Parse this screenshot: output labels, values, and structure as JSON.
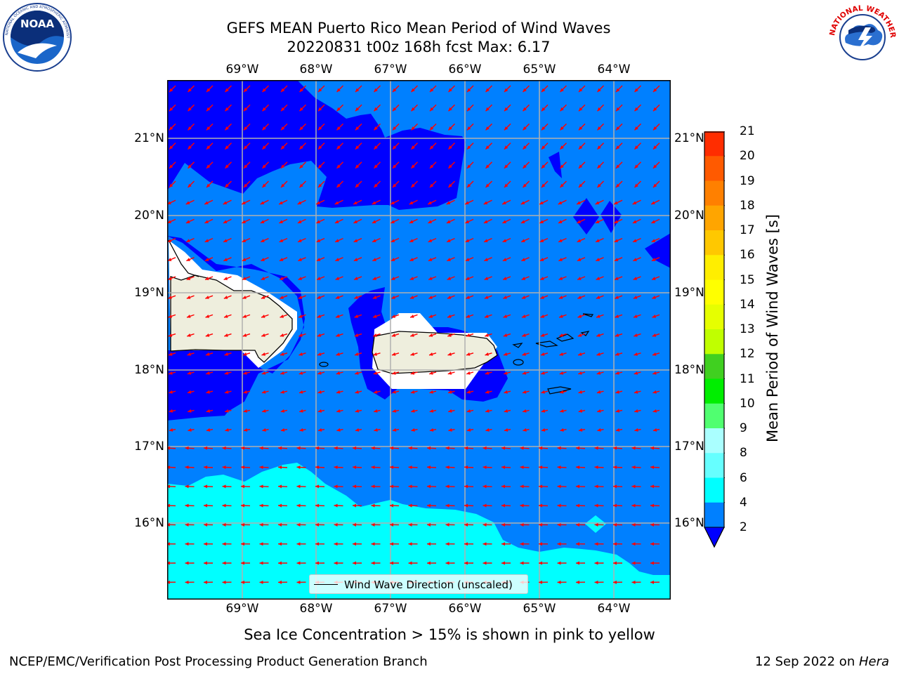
{
  "title": {
    "line1": "GEFS MEAN Puerto Rico Mean Period of Wind Waves",
    "line2": "20220831 t00z 168h fcst   Max: 6.17"
  },
  "logos": {
    "noaa": {
      "icon": "noaa-logo",
      "text": "NOAA",
      "ring_text": "NATIONAL OCEANIC AND ATMOSPHERIC ADMINISTRATION · U.S. DEPARTMENT OF COMMERCE"
    },
    "nws": {
      "icon": "nws-logo",
      "ring_text": "NATIONAL WEATHER SERVICE"
    }
  },
  "map": {
    "lon_labels": [
      "69°W",
      "68°W",
      "67°W",
      "66°W",
      "65°W",
      "64°W"
    ],
    "lat_labels": [
      "21°N",
      "20°N",
      "19°N",
      "18°N",
      "17°N",
      "16°N"
    ],
    "legend_label": "Wind Wave Direction (unscaled)",
    "colors": {
      "land": "#eeeedd",
      "level_2_4": "#0080ff",
      "level_below_2": "#0000ff",
      "level_4_6": "#00ffff",
      "arrows": "#ff0000",
      "grid": "#b0b0b0"
    }
  },
  "colorbar": {
    "label": "Mean Period of Wind Waves [s]",
    "ticks": [
      "21",
      "20",
      "19",
      "18",
      "17",
      "16",
      "15",
      "14",
      "13",
      "12",
      "11",
      "10",
      "9",
      "8",
      "6",
      "4",
      "2"
    ],
    "colors": [
      "#ff0000",
      "#ff2d00",
      "#ff5a00",
      "#ff8000",
      "#ffa500",
      "#ffc800",
      "#ffee00",
      "#ffff00",
      "#e6ff00",
      "#c0ff00",
      "#40d020",
      "#00ee00",
      "#50ff70",
      "#aaffff",
      "#66ffff",
      "#00ffff",
      "#0080ff"
    ],
    "under_color": "#0000ff"
  },
  "subtitle": "Sea Ice Concentration > 15% is shown in pink to yellow",
  "footer": {
    "left": "NCEP/EMC/Verification Post Processing Product Generation Branch",
    "right_date": "12 Sep 2022 on ",
    "right_host": "Hera"
  }
}
